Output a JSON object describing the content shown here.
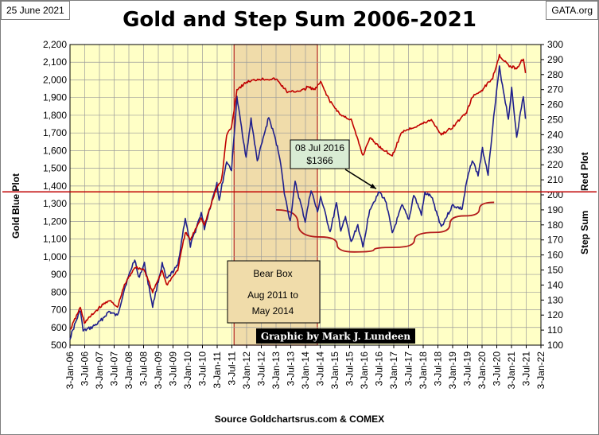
{
  "header": {
    "date": "25 June 2021",
    "site": "GATA.org",
    "title": "Gold and Step Sum 2006-2021"
  },
  "footer": {
    "source": "Source  Goldchartsrus.com  & COMEX"
  },
  "colors": {
    "plot_bg": "#ffffc6",
    "grid": "#9a9a9a",
    "gold_line": "#1f1f8c",
    "step_line": "#c00000",
    "bear_box_fill": "#f0dcaa",
    "bear_box_border": "#b22222"
  },
  "chart_data": {
    "type": "line",
    "title": "Gold and Step Sum 2006-2021",
    "xlabel": "",
    "x_ticks": [
      "3-Jan-06",
      "3-Jul-06",
      "3-Jan-07",
      "3-Jul-07",
      "3-Jan-08",
      "3-Jul-08",
      "3-Jan-09",
      "3-Jul-09",
      "3-Jan-10",
      "3-Jul-10",
      "3-Jan-11",
      "3-Jul-11",
      "3-Jan-12",
      "3-Jul-12",
      "3-Jan-13",
      "3-Jul-13",
      "3-Jan-14",
      "3-Jul-14",
      "3-Jan-15",
      "3-Jul-15",
      "3-Jan-16",
      "3-Jul-16",
      "3-Jan-17",
      "3-Jul-17",
      "3-Jan-18",
      "3-Jul-18",
      "3-Jan-19",
      "3-Jul-19",
      "3-Jan-20",
      "3-Jul-20",
      "3-Jan-21",
      "3-Jul-21",
      "3-Jan-22"
    ],
    "x_range": [
      "2006-01-03",
      "2022-01-03"
    ],
    "left_axis": {
      "label_gold": "Gold",
      "label_plot": "Blue Plot",
      "ylim": [
        500,
        2200
      ],
      "ticks": [
        "500",
        "600",
        "700",
        "800",
        "900",
        "1,000",
        "1,100",
        "1,200",
        "1,300",
        "1,400",
        "1,500",
        "1,600",
        "1,700",
        "1,800",
        "1,900",
        "2,000",
        "2,100",
        "2,200"
      ]
    },
    "right_axis": {
      "label_step": "Step Sum",
      "label_plot": "Red Plot",
      "ylim": [
        100,
        300
      ],
      "ticks": [
        "100",
        "110",
        "120",
        "130",
        "140",
        "150",
        "160",
        "170",
        "180",
        "190",
        "200",
        "210",
        "220",
        "230",
        "240",
        "250",
        "260",
        "270",
        "280",
        "290",
        "300"
      ]
    },
    "grid": true,
    "series": [
      {
        "name": "Gold",
        "axis": "left",
        "color": "#1f1f8c",
        "points": [
          [
            "2006-01-03",
            540
          ],
          [
            "2006-05-10",
            700
          ],
          [
            "2006-06-15",
            580
          ],
          [
            "2006-10-01",
            600
          ],
          [
            "2007-01-03",
            630
          ],
          [
            "2007-05-01",
            690
          ],
          [
            "2007-08-15",
            665
          ],
          [
            "2007-11-10",
            820
          ],
          [
            "2008-03-17",
            990
          ],
          [
            "2008-05-01",
            880
          ],
          [
            "2008-07-15",
            960
          ],
          [
            "2008-10-25",
            720
          ],
          [
            "2009-02-20",
            960
          ],
          [
            "2009-04-15",
            870
          ],
          [
            "2009-09-01",
            950
          ],
          [
            "2009-12-03",
            1220
          ],
          [
            "2010-02-05",
            1060
          ],
          [
            "2010-06-20",
            1250
          ],
          [
            "2010-07-28",
            1160
          ],
          [
            "2010-12-31",
            1420
          ],
          [
            "2011-01-28",
            1320
          ],
          [
            "2011-05-01",
            1540
          ],
          [
            "2011-07-01",
            1490
          ],
          [
            "2011-09-05",
            1900
          ],
          [
            "2011-12-29",
            1560
          ],
          [
            "2012-02-28",
            1780
          ],
          [
            "2012-05-15",
            1540
          ],
          [
            "2012-10-05",
            1790
          ],
          [
            "2012-12-28",
            1660
          ],
          [
            "2013-02-20",
            1560
          ],
          [
            "2013-04-15",
            1360
          ],
          [
            "2013-06-27",
            1200
          ],
          [
            "2013-08-28",
            1420
          ],
          [
            "2013-12-31",
            1200
          ],
          [
            "2014-03-14",
            1380
          ],
          [
            "2014-06-01",
            1250
          ],
          [
            "2014-07-10",
            1340
          ],
          [
            "2014-11-05",
            1140
          ],
          [
            "2015-01-22",
            1300
          ],
          [
            "2015-03-17",
            1150
          ],
          [
            "2015-05-15",
            1220
          ],
          [
            "2015-07-24",
            1080
          ],
          [
            "2015-10-15",
            1180
          ],
          [
            "2015-12-17",
            1050
          ],
          [
            "2016-03-10",
            1270
          ],
          [
            "2016-07-08",
            1366
          ],
          [
            "2016-10-01",
            1310
          ],
          [
            "2016-12-15",
            1130
          ],
          [
            "2017-04-15",
            1290
          ],
          [
            "2017-07-10",
            1210
          ],
          [
            "2017-09-08",
            1350
          ],
          [
            "2017-12-12",
            1240
          ],
          [
            "2018-01-25",
            1360
          ],
          [
            "2018-04-15",
            1340
          ],
          [
            "2018-08-16",
            1170
          ],
          [
            "2019-01-03",
            1290
          ],
          [
            "2019-05-01",
            1270
          ],
          [
            "2019-06-25",
            1420
          ],
          [
            "2019-09-04",
            1550
          ],
          [
            "2019-11-15",
            1460
          ],
          [
            "2020-01-08",
            1610
          ],
          [
            "2020-03-19",
            1470
          ],
          [
            "2020-05-15",
            1740
          ],
          [
            "2020-08-06",
            2070
          ],
          [
            "2020-11-25",
            1780
          ],
          [
            "2021-01-05",
            1950
          ],
          [
            "2021-03-08",
            1680
          ],
          [
            "2021-05-30",
            1910
          ],
          [
            "2021-06-25",
            1780
          ]
        ]
      },
      {
        "name": "Step Sum",
        "axis": "right",
        "color": "#c00000",
        "points": [
          [
            "2006-01-03",
            110
          ],
          [
            "2006-05-10",
            125
          ],
          [
            "2006-07-01",
            115
          ],
          [
            "2006-10-01",
            120
          ],
          [
            "2007-01-03",
            125
          ],
          [
            "2007-05-01",
            130
          ],
          [
            "2007-08-15",
            125
          ],
          [
            "2007-11-10",
            140
          ],
          [
            "2008-03-17",
            152
          ],
          [
            "2008-07-15",
            150
          ],
          [
            "2008-10-25",
            135
          ],
          [
            "2009-02-20",
            150
          ],
          [
            "2009-04-15",
            140
          ],
          [
            "2009-09-01",
            150
          ],
          [
            "2009-12-03",
            175
          ],
          [
            "2010-02-05",
            170
          ],
          [
            "2010-06-20",
            185
          ],
          [
            "2010-07-28",
            180
          ],
          [
            "2010-12-31",
            205
          ],
          [
            "2011-02-28",
            210
          ],
          [
            "2011-05-01",
            240
          ],
          [
            "2011-07-01",
            245
          ],
          [
            "2011-09-05",
            270
          ],
          [
            "2012-01-03",
            275
          ],
          [
            "2012-06-01",
            277
          ],
          [
            "2013-01-03",
            277
          ],
          [
            "2013-06-01",
            268
          ],
          [
            "2013-12-31",
            270
          ],
          [
            "2014-01-20",
            272
          ],
          [
            "2014-05-01",
            270
          ],
          [
            "2014-07-10",
            275
          ],
          [
            "2014-11-05",
            262
          ],
          [
            "2015-03-17",
            253
          ],
          [
            "2015-07-24",
            250
          ],
          [
            "2015-12-17",
            226
          ],
          [
            "2016-03-10",
            238
          ],
          [
            "2016-07-08",
            232
          ],
          [
            "2016-12-15",
            226
          ],
          [
            "2017-04-15",
            242
          ],
          [
            "2017-09-08",
            245
          ],
          [
            "2018-01-25",
            248
          ],
          [
            "2018-04-15",
            250
          ],
          [
            "2018-08-16",
            240
          ],
          [
            "2019-01-03",
            245
          ],
          [
            "2019-06-25",
            255
          ],
          [
            "2019-09-04",
            265
          ],
          [
            "2020-01-08",
            270
          ],
          [
            "2020-05-15",
            278
          ],
          [
            "2020-08-06",
            293
          ],
          [
            "2020-11-25",
            286
          ],
          [
            "2021-03-08",
            284
          ],
          [
            "2021-05-30",
            291
          ],
          [
            "2021-06-25",
            281
          ]
        ]
      }
    ],
    "reference_lines": [
      {
        "axis": "right",
        "value": 202,
        "color": "#c00000"
      }
    ],
    "trend_curve": {
      "color": "#b31b1b",
      "points": [
        [
          "2013-01-03",
          190
        ],
        [
          "2014-07-01",
          172
        ],
        [
          "2015-09-01",
          162
        ],
        [
          "2017-01-01",
          165
        ],
        [
          "2018-06-01",
          175
        ],
        [
          "2019-06-01",
          186
        ],
        [
          "2020-06-01",
          195
        ]
      ]
    },
    "bear_box": {
      "start": "2011-08-01",
      "end": "2014-05-31",
      "labels": [
        "Bear Box",
        "Aug 2011  to",
        "May 2014"
      ]
    },
    "annotations": [
      {
        "id": "peak_note",
        "lines": [
          "08 Jul 2016",
          "$1366"
        ],
        "target_date": "2016-07-08",
        "target_value": 1366
      },
      {
        "id": "credit",
        "text": "Graphic by Mark J. Lundeen"
      }
    ]
  }
}
